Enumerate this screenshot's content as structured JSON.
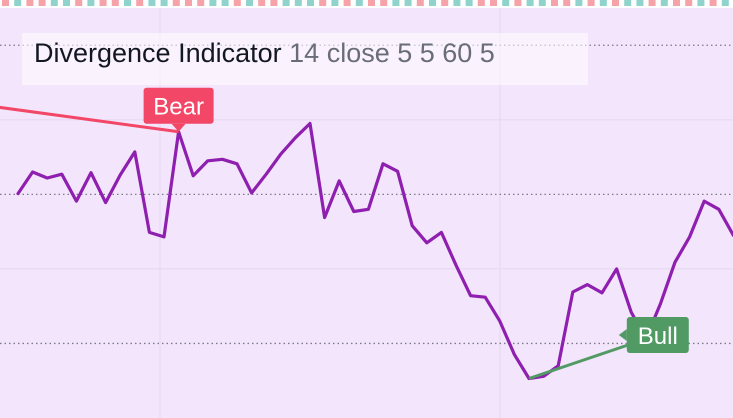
{
  "indicator": {
    "name": "Divergence Indicator",
    "params": "14 close 5 5 60 5"
  },
  "colors": {
    "background": "#f3e5fc",
    "line": "#8e1faf",
    "bear": "#f24766",
    "bull": "#519a64",
    "hline": "#787b86",
    "grid": "#e6d8f0"
  },
  "chart_data": {
    "type": "line",
    "title": "Divergence Indicator 14 close 5 5 60 5",
    "ylim": [
      20,
      75
    ],
    "hlines": [
      30,
      50,
      70
    ],
    "series": [
      {
        "values": [
          50.1,
          53.0,
          52.2,
          52.7,
          49.1,
          52.9,
          48.9,
          52.6,
          55.7,
          44.9,
          44.3,
          58.4,
          52.5,
          54.5,
          54.7,
          54.1,
          50.2,
          52.7,
          55.4,
          57.6,
          59.5,
          46.9,
          51.8,
          47.7,
          48.0,
          54.1,
          53.1,
          45.8,
          43.5,
          44.9,
          40.5,
          36.4,
          36.2,
          33.0,
          28.5,
          25.3,
          25.6,
          27.0,
          36.9,
          37.9,
          36.8,
          40.0,
          34.2,
          30.6,
          35.3,
          40.9,
          44.3,
          49.1,
          48.0,
          44.5
        ]
      }
    ],
    "divergences": [
      {
        "label": "Bear",
        "from": {
          "x": -4,
          "y": 62.4
        },
        "to": {
          "x": 11,
          "y": 58.4
        }
      },
      {
        "label": "Bull",
        "from": {
          "x": 35,
          "y": 25.3
        },
        "to": {
          "x": 43,
          "y": 30.6
        }
      }
    ]
  }
}
